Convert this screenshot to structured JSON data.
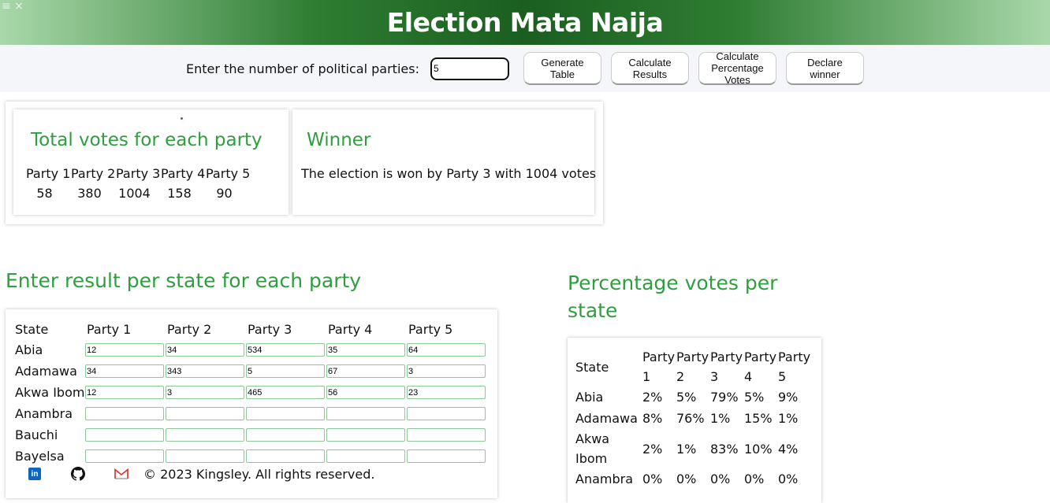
{
  "header": {
    "title": "Election Mata Naija",
    "menu_glyph": "≡ ×"
  },
  "toolbar": {
    "label": "Enter the number of political parties:",
    "parties_value": "5",
    "buttons": [
      "Generate Table",
      "Calculate Results",
      "Calculate Percentage Votes",
      "Declare winner"
    ]
  },
  "totals": {
    "title": "Total votes for each party",
    "parties": [
      "Party 1",
      "Party 2",
      "Party 3",
      "Party 4",
      "Party 5"
    ],
    "votes": [
      "58",
      "380",
      "1004",
      "158",
      "90"
    ]
  },
  "winner": {
    "title": "Winner",
    "text": "The election is won by Party 3 with 1004 votes"
  },
  "entry": {
    "title": "Enter result per state for each party",
    "headers": [
      "State",
      "Party 1",
      "Party 2",
      "Party 3",
      "Party 4",
      "Party 5"
    ],
    "rows": [
      {
        "state": "Abia",
        "values": [
          "12",
          "34",
          "534",
          "35",
          "64"
        ]
      },
      {
        "state": "Adamawa",
        "values": [
          "34",
          "343",
          "5",
          "67",
          "3"
        ]
      },
      {
        "state": "Akwa Ibom",
        "values": [
          "12",
          "3",
          "465",
          "56",
          "23"
        ]
      },
      {
        "state": "Anambra",
        "values": [
          "",
          "",
          "",
          "",
          ""
        ]
      },
      {
        "state": "Bauchi",
        "values": [
          "",
          "",
          "",
          "",
          ""
        ]
      },
      {
        "state": "Bayelsa",
        "values": [
          "",
          "",
          "",
          "",
          ""
        ]
      }
    ]
  },
  "percentages": {
    "title": "Percentage votes per state",
    "headers": [
      "State",
      "Party 1",
      "Party 2",
      "Party 3",
      "Party 4",
      "Party 5"
    ],
    "rows": [
      {
        "state": "Abia",
        "values": [
          "2%",
          "5%",
          "79%",
          "5%",
          "9%"
        ]
      },
      {
        "state": "Adamawa",
        "values": [
          "8%",
          "76%",
          "1%",
          "15%",
          "1%"
        ]
      },
      {
        "state": "Akwa Ibom",
        "values": [
          "2%",
          "1%",
          "83%",
          "10%",
          "4%"
        ]
      },
      {
        "state": "Anambra",
        "values": [
          "0%",
          "0%",
          "0%",
          "0%",
          "0%"
        ]
      }
    ]
  },
  "footer": {
    "copyright": "© 2023 Kingsley. All rights reserved.",
    "icons": [
      "linkedin-icon",
      "github-icon",
      "gmail-icon"
    ]
  },
  "colors": {
    "accent": "#2f9e3f",
    "header_dark": "#1b5e20"
  }
}
